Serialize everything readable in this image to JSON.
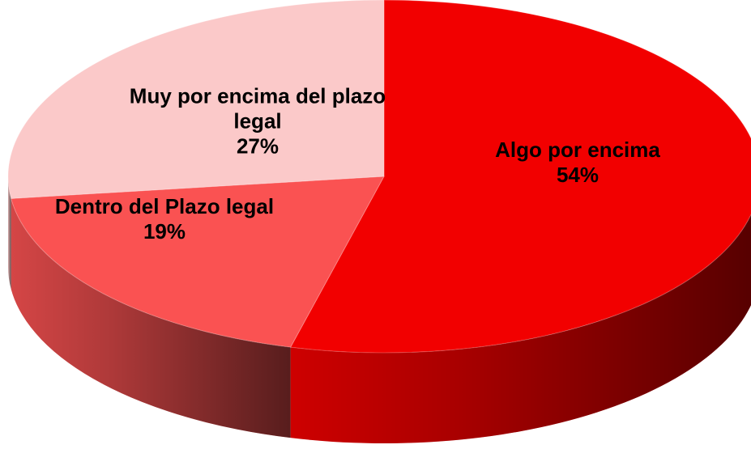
{
  "chart_data": {
    "type": "pie",
    "categories": [
      "Algo por encima",
      "Dentro del Plazo legal",
      "Muy por encima del plazo legal"
    ],
    "values": [
      54,
      19,
      27
    ],
    "value_labels": [
      "54%",
      "19%",
      "27%"
    ],
    "colors": [
      "#f20000",
      "#fa5252",
      "#fbc9c9"
    ]
  }
}
